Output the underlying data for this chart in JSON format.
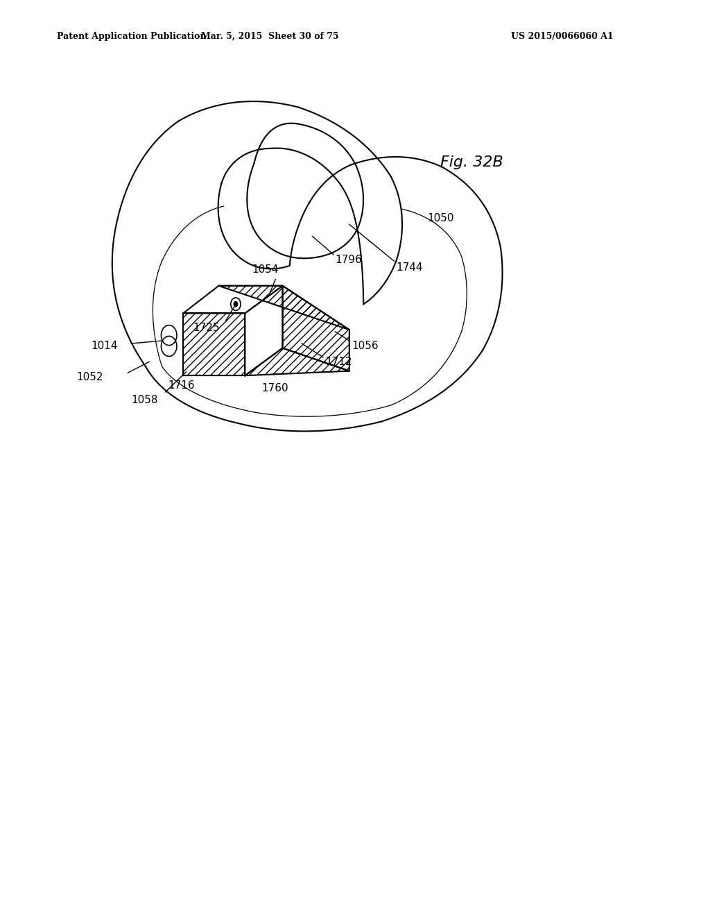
{
  "title_header": "Patent Application Publication",
  "date_header": "Mar. 5, 2015  Sheet 30 of 75",
  "patent_header": "US 2015/0066060 A1",
  "fig_label": "Fig. 32B",
  "background_color": "#ffffff",
  "line_color": "#000000"
}
